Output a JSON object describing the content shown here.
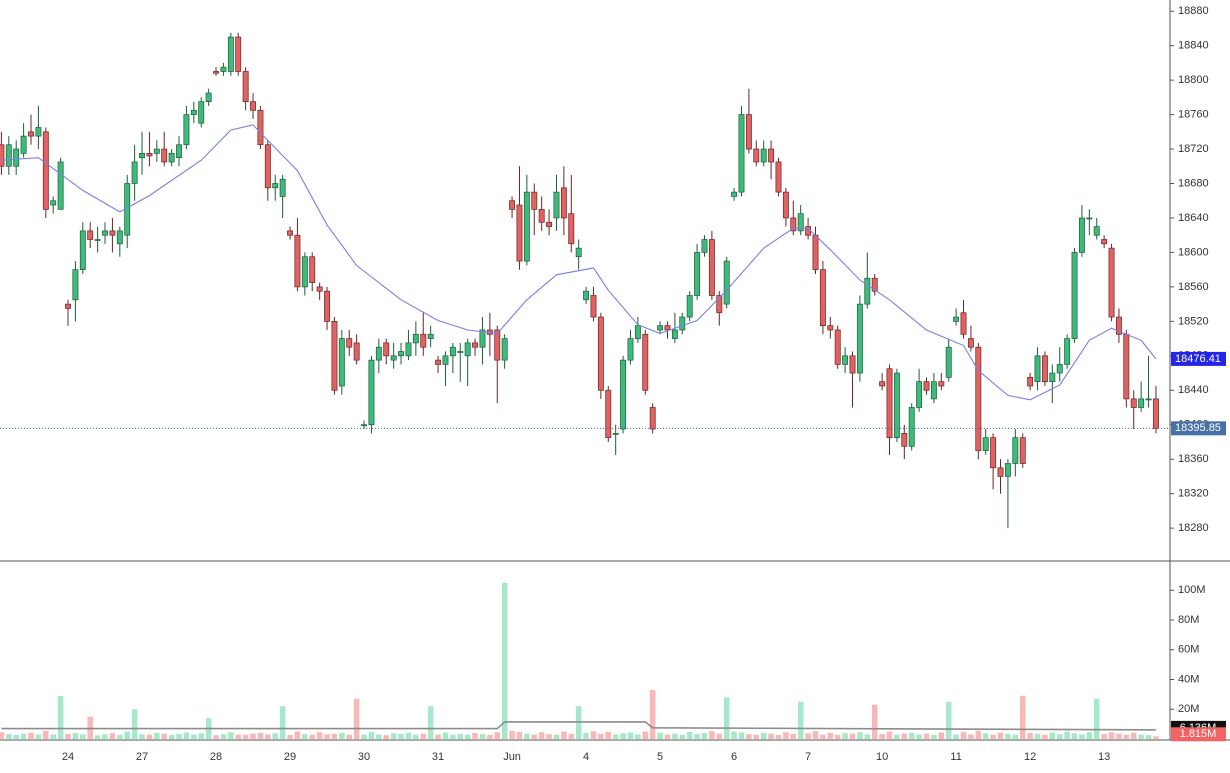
{
  "chart_data": {
    "type": "candlestick",
    "categories": [
      null,
      null,
      null,
      null,
      null,
      null,
      null,
      null,
      null,
      "24",
      null,
      null,
      null,
      null,
      null,
      null,
      null,
      null,
      null,
      "27",
      null,
      null,
      null,
      null,
      null,
      null,
      null,
      null,
      null,
      "28",
      null,
      null,
      null,
      null,
      null,
      null,
      null,
      null,
      null,
      "29",
      null,
      null,
      null,
      null,
      null,
      null,
      null,
      null,
      null,
      "30",
      null,
      null,
      null,
      null,
      null,
      null,
      null,
      null,
      null,
      "31",
      null,
      null,
      null,
      null,
      null,
      null,
      null,
      null,
      null,
      "Jun",
      null,
      null,
      null,
      null,
      null,
      null,
      null,
      null,
      null,
      "4",
      null,
      null,
      null,
      null,
      null,
      null,
      null,
      null,
      null,
      "5",
      null,
      null,
      null,
      null,
      null,
      null,
      null,
      null,
      null,
      "6",
      null,
      null,
      null,
      null,
      null,
      null,
      null,
      null,
      null,
      "7",
      null,
      null,
      null,
      null,
      null,
      null,
      null,
      null,
      null,
      "10",
      null,
      null,
      null,
      null,
      null,
      null,
      null,
      null,
      null,
      "11",
      null,
      null,
      null,
      null,
      null,
      null,
      null,
      null,
      null,
      "12",
      null,
      null,
      null,
      null,
      null,
      null,
      null,
      null,
      null,
      "13",
      null,
      null,
      null,
      null,
      null,
      null,
      null
    ],
    "open": [
      18725,
      18700,
      18700,
      18715,
      18740,
      18735,
      18740,
      18655,
      18650,
      18540,
      18545,
      18580,
      18625,
      18615,
      18620,
      18625,
      18610,
      18620,
      18680,
      18710,
      18715,
      18715,
      18720,
      18705,
      18710,
      18725,
      18760,
      18750,
      18775,
      18810,
      18810,
      18810,
      18850,
      18810,
      18775,
      18765,
      18725,
      18675,
      18665,
      18625,
      18620,
      18560,
      18595,
      18560,
      18555,
      18520,
      18445,
      18500,
      18495,
      18400,
      18400,
      18475,
      18495,
      18475,
      18480,
      18480,
      18495,
      18505,
      18500,
      18475,
      18470,
      18480,
      18485,
      18480,
      18495,
      18490,
      18510,
      18510,
      18475,
      18660,
      18655,
      18590,
      18670,
      18650,
      18635,
      18640,
      18675,
      18645,
      18595,
      18545,
      18550,
      18525,
      18440,
      18390,
      18395,
      18475,
      18500,
      18505,
      18420,
      18510,
      18515,
      18500,
      18510,
      18525,
      18550,
      18600,
      18615,
      18550,
      18540,
      18665,
      18670,
      18760,
      18720,
      18705,
      18720,
      18705,
      18670,
      18640,
      18625,
      18630,
      18620,
      18580,
      18515,
      18510,
      18470,
      18480,
      18460,
      18540,
      18570,
      18450,
      18465,
      18385,
      18390,
      18375,
      18420,
      18450,
      18430,
      18450,
      18455,
      18520,
      18530,
      18500,
      18490,
      18370,
      18385,
      18350,
      18340,
      18355,
      18385,
      18455,
      18450,
      18480,
      18450,
      18460,
      18470,
      18500,
      18600,
      18640,
      18620,
      18615,
      18605,
      18525,
      18505,
      18430,
      18420,
      18430,
      18430
    ],
    "high": [
      18740,
      18735,
      18730,
      18750,
      18760,
      18770,
      18745,
      18665,
      18710,
      18545,
      18590,
      18635,
      18635,
      18630,
      18635,
      18640,
      18630,
      18690,
      18725,
      18740,
      18740,
      18730,
      18740,
      18720,
      18735,
      18770,
      18775,
      18780,
      18790,
      18815,
      18820,
      18855,
      18855,
      18815,
      18785,
      18770,
      18730,
      18690,
      18690,
      18630,
      18640,
      18600,
      18600,
      18565,
      18560,
      18525,
      18510,
      18510,
      18505,
      18405,
      18480,
      18500,
      18500,
      18495,
      18495,
      18510,
      18520,
      18530,
      18515,
      18480,
      18485,
      18495,
      18495,
      18500,
      18500,
      18525,
      18530,
      18515,
      18505,
      18665,
      18700,
      18690,
      18680,
      18665,
      18650,
      18690,
      18700,
      18690,
      18615,
      18560,
      18560,
      18530,
      18445,
      18400,
      18480,
      18510,
      18525,
      18510,
      18425,
      18520,
      18520,
      18530,
      18530,
      18555,
      18610,
      18620,
      18625,
      18555,
      18595,
      18675,
      18770,
      18790,
      18730,
      18730,
      18730,
      18710,
      18675,
      18660,
      18655,
      18640,
      18630,
      18590,
      18525,
      18515,
      18490,
      18485,
      18550,
      18600,
      18575,
      18460,
      18470,
      18465,
      18400,
      18425,
      18465,
      18455,
      18460,
      18460,
      18500,
      18535,
      18545,
      18515,
      18495,
      18395,
      18390,
      18360,
      18360,
      18395,
      18390,
      18460,
      18490,
      18485,
      18470,
      18490,
      18505,
      18605,
      18655,
      18650,
      18640,
      18620,
      18610,
      18535,
      18510,
      18440,
      18450,
      18480,
      18445
    ],
    "low": [
      18690,
      18690,
      18690,
      18710,
      18725,
      18720,
      18640,
      18645,
      18650,
      18515,
      18520,
      18575,
      18605,
      18600,
      18610,
      18600,
      18595,
      18605,
      18660,
      18690,
      18700,
      18705,
      18700,
      18700,
      18700,
      18720,
      18750,
      18745,
      18770,
      18805,
      18805,
      18805,
      18805,
      18765,
      18755,
      18720,
      18660,
      18660,
      18640,
      18615,
      18555,
      18550,
      18555,
      18545,
      18510,
      18435,
      18435,
      18480,
      18470,
      18395,
      18390,
      18460,
      18470,
      18465,
      18470,
      18475,
      18480,
      18480,
      18490,
      18460,
      18445,
      18460,
      18450,
      18445,
      18480,
      18470,
      18480,
      18425,
      18465,
      18640,
      18580,
      18585,
      18620,
      18625,
      18620,
      18625,
      18620,
      18600,
      18580,
      18540,
      18520,
      18430,
      18380,
      18365,
      18390,
      18470,
      18495,
      18435,
      18390,
      18505,
      18500,
      18495,
      18505,
      18520,
      18545,
      18595,
      18545,
      18515,
      18535,
      18660,
      18665,
      18715,
      18700,
      18700,
      18685,
      18665,
      18630,
      18620,
      18620,
      18615,
      18575,
      18505,
      18500,
      18465,
      18460,
      18420,
      18450,
      18535,
      18550,
      18440,
      18365,
      18380,
      18360,
      18370,
      18415,
      18435,
      18425,
      18440,
      18450,
      18515,
      18500,
      18485,
      18360,
      18365,
      18325,
      18320,
      18280,
      18340,
      18350,
      18440,
      18440,
      18445,
      18425,
      18450,
      18465,
      18495,
      18595,
      18620,
      18615,
      18605,
      18520,
      18495,
      18420,
      18395,
      18415,
      18420,
      18390
    ],
    "close": [
      18700,
      18725,
      18720,
      18735,
      18735,
      18745,
      18650,
      18660,
      18705,
      18535,
      18580,
      18625,
      18615,
      18615,
      18625,
      18620,
      18625,
      18680,
      18705,
      18715,
      18712,
      18720,
      18705,
      18715,
      18725,
      18760,
      18765,
      18775,
      18785,
      18808,
      18815,
      18850,
      18810,
      18775,
      18765,
      18725,
      18675,
      18680,
      18685,
      18620,
      18560,
      18595,
      18565,
      18555,
      18520,
      18440,
      18500,
      18490,
      18475,
      18400,
      18475,
      18490,
      18480,
      18480,
      18485,
      18495,
      18505,
      18490,
      18505,
      18470,
      18480,
      18490,
      18485,
      18495,
      18490,
      18510,
      18505,
      18475,
      18500,
      18650,
      18590,
      18670,
      18650,
      18635,
      18630,
      18670,
      18640,
      18610,
      18605,
      18555,
      18525,
      18440,
      18385,
      18390,
      18475,
      18500,
      18515,
      18440,
      18395,
      18515,
      18510,
      18510,
      18525,
      18550,
      18600,
      18615,
      18550,
      18530,
      18590,
      18670,
      18760,
      18720,
      18705,
      18720,
      18705,
      18670,
      18640,
      18625,
      18645,
      18620,
      18580,
      18515,
      18510,
      18470,
      18480,
      18460,
      18540,
      18570,
      18555,
      18445,
      18385,
      18460,
      18375,
      18420,
      18450,
      18440,
      18450,
      18445,
      18490,
      18525,
      18505,
      18490,
      18370,
      18385,
      18350,
      18340,
      18355,
      18385,
      18355,
      18445,
      18480,
      18450,
      18460,
      18470,
      18500,
      18600,
      18640,
      18640,
      18630,
      18610,
      18525,
      18505,
      18430,
      18420,
      18430,
      18430,
      18395.85
    ],
    "volume": [
      4500000,
      3200000,
      2800000,
      3500000,
      4200000,
      3000000,
      5500000,
      3100000,
      29000000,
      3400000,
      4000000,
      3000000,
      15000000,
      2500000,
      3100000,
      4000000,
      2800000,
      5000000,
      20000000,
      3200000,
      2900000,
      4100000,
      3500000,
      2700000,
      3300000,
      4400000,
      3000000,
      3800000,
      14000000,
      2600000,
      3200000,
      4500000,
      3000000,
      2800000,
      3600000,
      4200000,
      3100000,
      3900000,
      22000000,
      2700000,
      5000000,
      3300000,
      2900000,
      4600000,
      3200000,
      3500000,
      4000000,
      2800000,
      27000000,
      3000000,
      4800000,
      3100000,
      2600000,
      3900000,
      3400000,
      4200000,
      2900000,
      3600000,
      22000000,
      3100000,
      4400000,
      2800000,
      3500000,
      3000000,
      4100000,
      3300000,
      2700000,
      4600000,
      105000000,
      5500000,
      4800000,
      3600000,
      3000000,
      4500000,
      3200000,
      2900000,
      5000000,
      3400000,
      22000000,
      4000000,
      5200000,
      3500000,
      4800000,
      3000000,
      3900000,
      4400000,
      3100000,
      5000000,
      33000000,
      4200000,
      3000000,
      3600000,
      2800000,
      4700000,
      3300000,
      4000000,
      5200000,
      3500000,
      28000000,
      5000000,
      4400000,
      3200000,
      2900000,
      4100000,
      3600000,
      2700000,
      4500000,
      3400000,
      25000000,
      3800000,
      5300000,
      3000000,
      4200000,
      2800000,
      3900000,
      3500000,
      4600000,
      3100000,
      23000000,
      3300000,
      5000000,
      2900000,
      3700000,
      4200000,
      3000000,
      3600000,
      2800000,
      4400000,
      25000000,
      3200000,
      4600000,
      3100000,
      5500000,
      3800000,
      2900000,
      4300000,
      3400000,
      3000000,
      29000000,
      4100000,
      3500000,
      2800000,
      4400000,
      3200000,
      5000000,
      3900000,
      3100000,
      4600000,
      27000000,
      3300000,
      4500000,
      3600000,
      2900000,
      4200000,
      3000000,
      2600000,
      1815000
    ],
    "volume_last_label": "1.815M",
    "ma": {
      "x": [
        0,
        5,
        11,
        16,
        20,
        27,
        31,
        34,
        36,
        40,
        44,
        48,
        54,
        59,
        63,
        67,
        71,
        75,
        80,
        82,
        86,
        89,
        94,
        98,
        103,
        107,
        109,
        112,
        116,
        120,
        125,
        130,
        132,
        136,
        139,
        143,
        147,
        150,
        154,
        156
      ],
      "values": [
        18707,
        18710,
        18672,
        18647,
        18666,
        18707,
        18742,
        18748,
        18730,
        18695,
        18632,
        18585,
        18545,
        18521,
        18510,
        18506,
        18545,
        18574,
        18582,
        18556,
        18516,
        18506,
        18521,
        18556,
        18605,
        18628,
        18628,
        18603,
        18568,
        18545,
        18510,
        18492,
        18463,
        18434,
        18429,
        18446,
        18498,
        18512,
        18498,
        18476.41
      ],
      "color": "#7b7fe6"
    },
    "volume_ma": {
      "x": [
        0,
        67,
        68,
        87,
        88,
        156
      ],
      "values": [
        7000000,
        7000000,
        11500000,
        11500000,
        7500000,
        6136000
      ],
      "last_label": "6.136M",
      "color": "#8c8c8c"
    },
    "up_color": "#3dbb7a",
    "down_color": "#e06262",
    "up_volume_color": "#a6e8cb",
    "down_volume_color": "#f9b8b8",
    "xlim": [
      -0.19,
      157.9
    ],
    "ylim": [
      18243,
      18893
    ],
    "yticks": [
      18280,
      18320,
      18360,
      18400,
      18440,
      18480,
      18520,
      18560,
      18600,
      18640,
      18680,
      18720,
      18760,
      18800,
      18840,
      18880
    ],
    "vlim": [
      0,
      119000000
    ],
    "vticks": [
      {
        "value": 20000000,
        "label": "20M"
      },
      {
        "value": 40000000,
        "label": "40M"
      },
      {
        "value": 60000000,
        "label": "60M"
      },
      {
        "value": 80000000,
        "label": "80M"
      },
      {
        "value": 100000000,
        "label": "100M"
      }
    ],
    "grid": false
  }
}
